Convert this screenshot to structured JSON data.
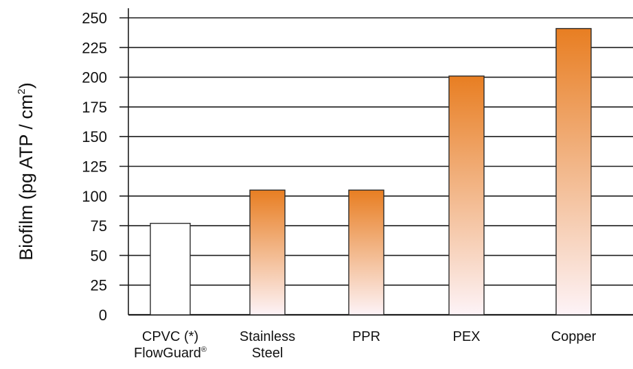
{
  "chart_data": {
    "type": "bar",
    "ylabel": "Biofilm (pg ATP / cm²)",
    "ylabel_main": "Biofilm (pg ATP / cm",
    "ylabel_sup": "2",
    "ylabel_close": ")",
    "ylim": [
      0,
      250
    ],
    "yticks": [
      "0",
      "25",
      "50",
      "75",
      "100",
      "125",
      "150",
      "175",
      "200",
      "225",
      "250"
    ],
    "categories": [
      {
        "lines": [
          "CPVC (*)",
          "FlowGuard"
        ],
        "sup": "®"
      },
      {
        "lines": [
          "Stainless",
          "Steel"
        ],
        "sup": ""
      },
      {
        "lines": [
          "PPR"
        ],
        "sup": ""
      },
      {
        "lines": [
          "PEX"
        ],
        "sup": ""
      },
      {
        "lines": [
          "Copper"
        ],
        "sup": ""
      }
    ],
    "values": [
      77,
      105,
      105,
      201,
      241
    ],
    "styles": [
      "white",
      "gradient",
      "gradient",
      "gradient",
      "gradient"
    ],
    "grid": true,
    "colors": {
      "gradient_top": "#e87e22",
      "gradient_bottom": "#fdf3f7",
      "plain_bar": "#ffffff",
      "bar_outline": "#2a2a2a",
      "gridline": "#1a1a1a",
      "text": "#111111"
    }
  }
}
